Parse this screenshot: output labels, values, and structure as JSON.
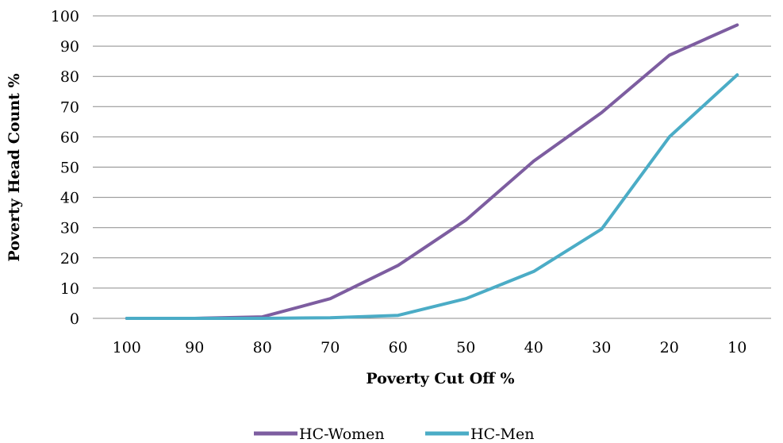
{
  "chart_data": {
    "type": "line",
    "title": "",
    "xlabel": "Poverty Cut Off %",
    "ylabel": "Poverty Head Count  %",
    "categories": [
      "100",
      "90",
      "80",
      "70",
      "60",
      "50",
      "40",
      "30",
      "20",
      "10"
    ],
    "ylim": [
      0,
      100
    ],
    "yticks": [
      "0",
      "10",
      "20",
      "30",
      "40",
      "50",
      "60",
      "70",
      "80",
      "90",
      "100"
    ],
    "grid": true,
    "legend_position": "bottom",
    "series": [
      {
        "name": "HC-Women",
        "color": "#7D5DA0",
        "values": [
          0,
          0,
          0.5,
          6.5,
          17.5,
          32.5,
          52,
          68,
          87,
          97
        ]
      },
      {
        "name": "HC-Men",
        "color": "#4BACC6",
        "values": [
          0,
          0,
          0,
          0.2,
          1,
          6.5,
          15.5,
          29.5,
          60,
          80.5
        ]
      }
    ]
  }
}
